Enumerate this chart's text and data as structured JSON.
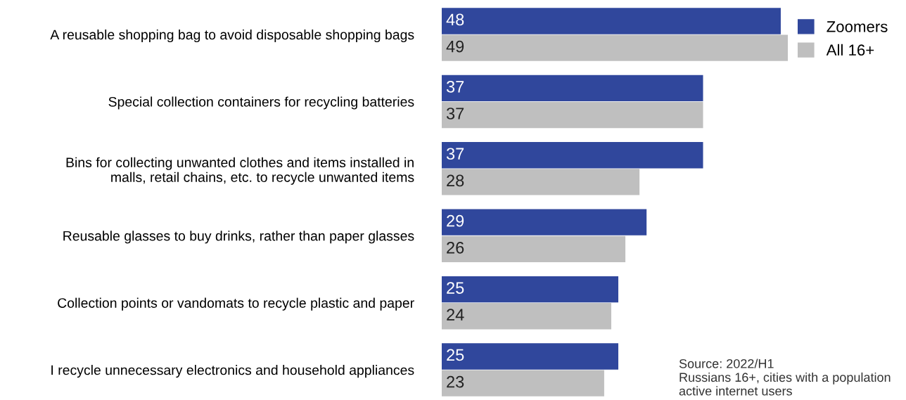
{
  "chart_data": {
    "type": "bar",
    "orientation": "horizontal",
    "categories": [
      "A reusable shopping bag to avoid disposable shopping bags",
      "Special collection containers for recycling batteries",
      "Bins for collecting unwanted clothes and items installed in\nmalls, retail chains, etc. to recycle unwanted items",
      "Reusable glasses to buy drinks, rather than paper glasses",
      "Collection points or vandomats to recycle plastic and paper",
      "I recycle unnecessary electronics and household appliances"
    ],
    "series": [
      {
        "name": "Zoomers",
        "color": "#30479c",
        "values": [
          48,
          37,
          37,
          29,
          25,
          25
        ]
      },
      {
        "name": "All 16+",
        "color": "#bfbfbf",
        "values": [
          49,
          37,
          28,
          26,
          24,
          23
        ]
      }
    ],
    "data_labels": true,
    "grid": false,
    "legend": "top right",
    "annotations": [
      "Source: 2022/H1\nRussians 16+, cities with a population\nactive internet users"
    ]
  }
}
